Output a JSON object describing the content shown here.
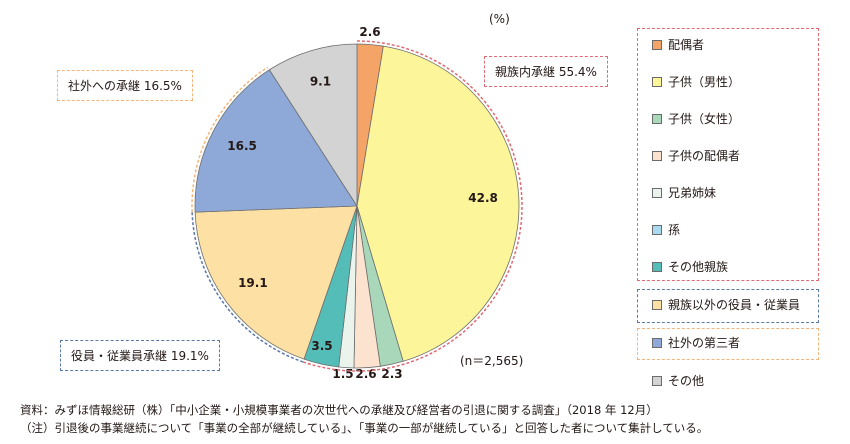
{
  "unit_label": "(%)",
  "n_label": "(n＝2,565)",
  "callouts": {
    "family": "親族内承継 55.4%",
    "external": "社外への承継 16.5%",
    "employee": "役員・従業員承継 19.1%"
  },
  "notes": {
    "source": "資料：みずほ情報総研（株）「中小企業・小規模事業者の次世代への承継及び経営者の引退に関する調査」（2018 年 12月）",
    "note": "（注）引退後の事業継続について「事業の全部が継続している」、「事業の一部が継続している」と回答した者について集計している。"
  },
  "chart_data": {
    "type": "pie",
    "title": "",
    "unit": "%",
    "slices": [
      {
        "name": "配偶者",
        "value": 2.6,
        "label": "2.6",
        "color": "#f4a466"
      },
      {
        "name": "子供（男性）",
        "value": 42.8,
        "label": "42.8",
        "color": "#fcf59a"
      },
      {
        "name": "子供（女性）",
        "value": 2.3,
        "label": "2.3",
        "color": "#a8d8b9"
      },
      {
        "name": "子供の配偶者",
        "value": 2.6,
        "label": "2.6",
        "color": "#fce3cf"
      },
      {
        "name": "兄弟姉妹",
        "value": 1.5,
        "label": "1.5",
        "color": "#eaf4ec"
      },
      {
        "name": "孫",
        "value": 0.0,
        "label": "",
        "color": "#a8dbef"
      },
      {
        "name": "その他親族",
        "value": 3.5,
        "label": "3.5",
        "color": "#55bdb8"
      },
      {
        "name": "親族以外の役員・従業員",
        "value": 19.1,
        "label": "19.1",
        "color": "#fde0a4"
      },
      {
        "name": "社外の第三者",
        "value": 16.5,
        "label": "16.5",
        "color": "#8ea9d7"
      },
      {
        "name": "その他",
        "value": 9.1,
        "label": "9.1",
        "color": "#d3d3d3"
      }
    ]
  }
}
